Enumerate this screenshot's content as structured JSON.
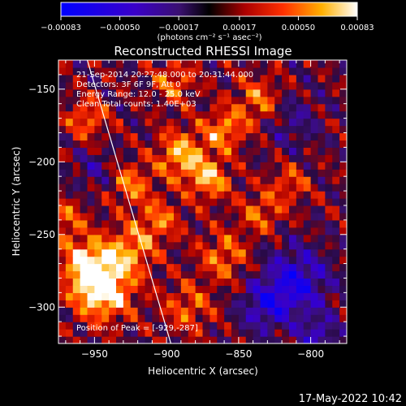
{
  "chart_data": {
    "type": "heatmap",
    "title": "Reconstructed RHESSI Image",
    "xlabel": "Heliocentric X (arcsec)",
    "ylabel": "Heliocentric Y (arcsec)",
    "xlim": [
      -975,
      -775
    ],
    "ylim": [
      -325,
      -130
    ],
    "xticks": [
      -950,
      -900,
      -850,
      -800
    ],
    "xtick_labels": [
      "−950",
      "−900",
      "−850",
      "−800"
    ],
    "yticks": [
      -300,
      -250,
      -200,
      -150
    ],
    "ytick_labels": [
      "−300",
      "−250",
      "−200",
      "−150"
    ],
    "colorbar": {
      "ticks": [
        -0.00083,
        -0.0005,
        -0.00017,
        0.00017,
        0.0005,
        0.00083
      ],
      "tick_labels": [
        "−0.00083",
        "−0.00050",
        "−0.00017",
        "0.00017",
        "0.00050",
        "0.00083"
      ],
      "unit_label": "(photons cm⁻² s⁻¹ asec⁻²)"
    },
    "annotations": [
      "21-Sep-2014 20:27:48.000 to 20:31:44.000",
      "Detectors: 3F 6F 9F, Att 0",
      "Energy Range: 12.0 - 25.0 keV",
      "Clean    Total counts: 1.40E+03"
    ],
    "peak_label": "Position of Peak = [-929,-287]",
    "peak_position": [
      -929,
      -287
    ],
    "limb_line": [
      [
        -955,
        -130
      ],
      [
        -897,
        -325
      ]
    ],
    "blobs": [
      [
        -944,
        -288,
        1.0,
        14
      ],
      [
        -955,
        -270,
        0.8,
        12
      ],
      [
        -925,
        -260,
        0.6,
        12
      ],
      [
        -890,
        -195,
        0.7,
        12
      ],
      [
        -870,
        -212,
        0.65,
        10
      ],
      [
        -860,
        -178,
        0.6,
        10
      ],
      [
        -835,
        -158,
        0.55,
        12
      ],
      [
        -895,
        -145,
        0.5,
        10
      ],
      [
        -925,
        -215,
        0.55,
        10
      ],
      [
        -955,
        -170,
        0.5,
        10
      ],
      [
        -970,
        -240,
        0.45,
        10
      ],
      [
        -860,
        -265,
        0.5,
        12
      ],
      [
        -885,
        -300,
        0.45,
        12
      ],
      [
        -905,
        -240,
        0.5,
        10
      ],
      [
        -835,
        -235,
        0.45,
        10
      ],
      [
        -815,
        -215,
        0.4,
        10
      ],
      [
        -810,
        -282,
        -0.75,
        16
      ],
      [
        -832,
        -300,
        -0.55,
        12
      ],
      [
        -795,
        -320,
        -0.5,
        10
      ],
      [
        -815,
        -170,
        -0.35,
        14
      ],
      [
        -950,
        -205,
        -0.3,
        10
      ]
    ]
  },
  "footer": {
    "timestamp": "17-May-2022 10:42"
  }
}
